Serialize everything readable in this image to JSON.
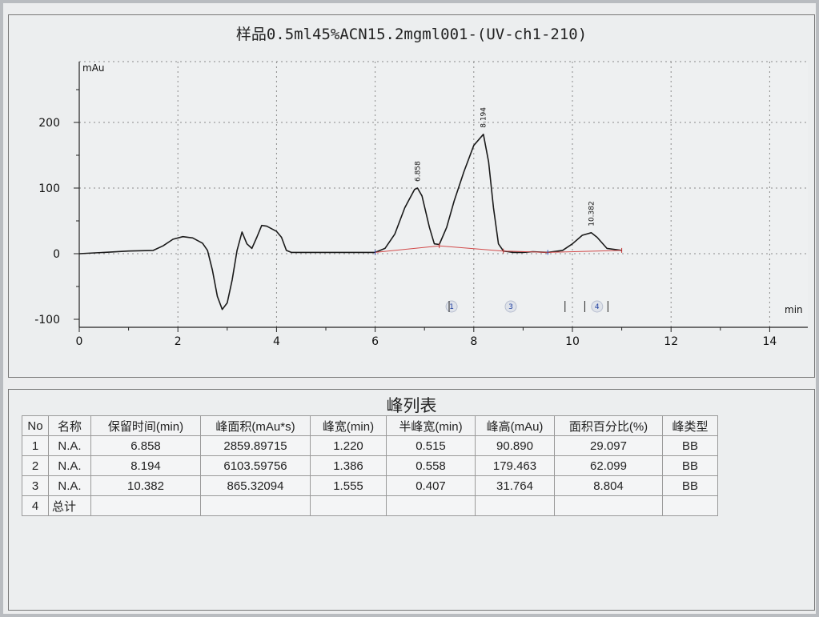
{
  "chart": {
    "title": "样品0.5ml45%ACN15.2mgml001-(UV-ch1-210)",
    "y_unit": "mAu",
    "x_unit": "min",
    "x_ticks": [
      "0",
      "2",
      "4",
      "6",
      "8",
      "10",
      "12",
      "14"
    ],
    "y_ticks": [
      "200",
      "100",
      "0",
      "-100"
    ],
    "peak_labels": [
      "6.858",
      "8.194",
      "10.382"
    ],
    "marker_labels": [
      "1",
      "3",
      "4"
    ]
  },
  "chart_data": {
    "type": "line",
    "title": "样品0.5ml45%ACN15.2mgml001-(UV-ch1-210)",
    "xlabel": "min",
    "ylabel": "mAu",
    "xlim": [
      0,
      14.8
    ],
    "ylim": [
      -100,
      290
    ],
    "grid": true,
    "series": [
      {
        "x": [
          0,
          0.5,
          1.0,
          1.5,
          1.7,
          1.9,
          2.1,
          2.3,
          2.5,
          2.6,
          2.7,
          2.8,
          2.9,
          3.0,
          3.1,
          3.2,
          3.3,
          3.4,
          3.5,
          3.6,
          3.7,
          3.8,
          3.9,
          4.0,
          4.1,
          4.2,
          4.3,
          4.5,
          5.0,
          5.5,
          6.0,
          6.2,
          6.4,
          6.6,
          6.8,
          6.858,
          6.95,
          7.1,
          7.2,
          7.3,
          7.45,
          7.6,
          7.8,
          8.0,
          8.194,
          8.3,
          8.4,
          8.5,
          8.6,
          8.8,
          9.0,
          9.2,
          9.5,
          9.8,
          10.0,
          10.2,
          10.382,
          10.5,
          10.7,
          10.9,
          11.0
        ],
        "y": [
          0,
          2,
          4,
          5,
          12,
          22,
          26,
          24,
          16,
          5,
          -25,
          -65,
          -85,
          -75,
          -40,
          5,
          33,
          15,
          8,
          25,
          43,
          42,
          38,
          34,
          25,
          5,
          2,
          2,
          2,
          2,
          2,
          8,
          30,
          70,
          98,
          100,
          88,
          40,
          15,
          14,
          40,
          80,
          125,
          165,
          182,
          140,
          70,
          15,
          4,
          2,
          2,
          3,
          2,
          5,
          15,
          28,
          32,
          25,
          8,
          6,
          5
        ]
      },
      {
        "name": "baseline",
        "x": [
          6.0,
          7.3,
          8.6,
          9.5,
          11.0
        ],
        "y": [
          2,
          12,
          4,
          2,
          5
        ]
      }
    ],
    "peaks": [
      {
        "label": "6.858",
        "x": 6.858,
        "y": 100
      },
      {
        "label": "8.194",
        "x": 8.194,
        "y": 182
      },
      {
        "label": "10.382",
        "x": 10.382,
        "y": 32
      }
    ],
    "peak_markers": [
      {
        "label": "1",
        "x": 7.55
      },
      {
        "label": "3",
        "x": 8.75
      },
      {
        "label": "4",
        "x": 10.5
      }
    ]
  },
  "table": {
    "title": "峰列表",
    "headers": [
      "No",
      "名称",
      "保留时间(min)",
      "峰面积(mAu*s)",
      "峰宽(min)",
      "半峰宽(min)",
      "峰高(mAu)",
      "面积百分比(%)",
      "峰类型"
    ],
    "rows": [
      [
        "1",
        "N.A.",
        "6.858",
        "2859.89715",
        "1.220",
        "0.515",
        "90.890",
        "29.097",
        "BB"
      ],
      [
        "2",
        "N.A.",
        "8.194",
        "6103.59756",
        "1.386",
        "0.558",
        "179.463",
        "62.099",
        "BB"
      ],
      [
        "3",
        "N.A.",
        "10.382",
        "865.32094",
        "1.555",
        "0.407",
        "31.764",
        "8.804",
        "BB"
      ],
      [
        "4",
        "总计",
        "",
        "",
        "",
        "",
        "",
        "",
        ""
      ]
    ]
  }
}
